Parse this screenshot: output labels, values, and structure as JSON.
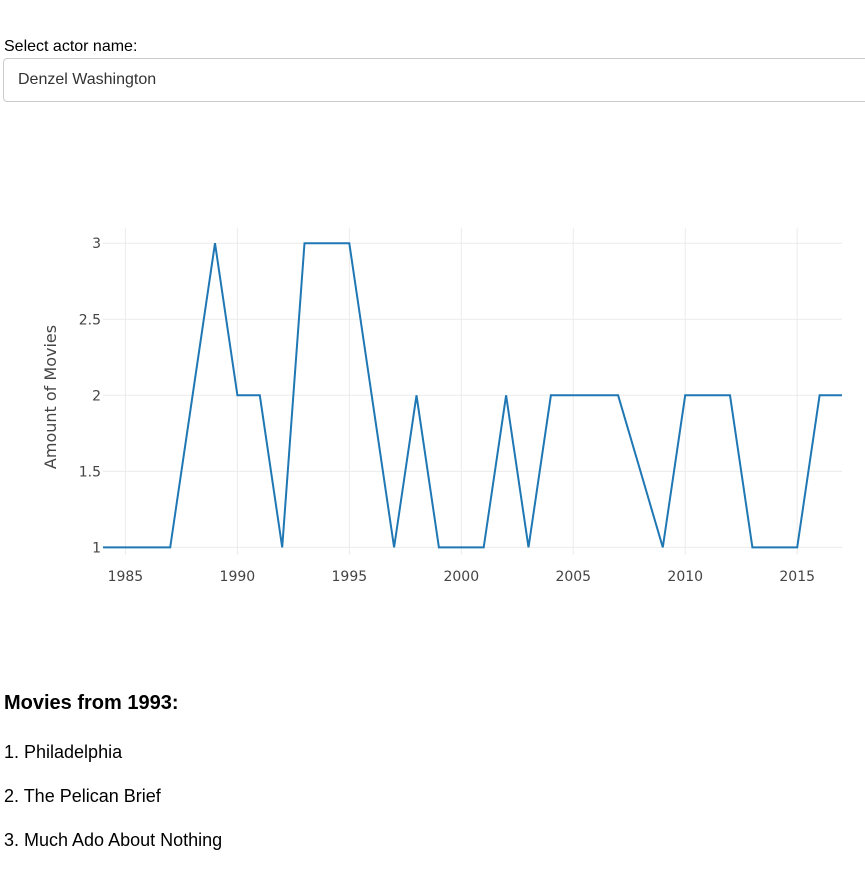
{
  "actor_select": {
    "label": "Select actor name:",
    "value": "Denzel Washington"
  },
  "chart_data": {
    "type": "line",
    "ylabel": "Amount of Movies",
    "xlabel": "",
    "xlim": [
      1984,
      2017
    ],
    "ylim": [
      0.95,
      3.1
    ],
    "x_ticks": [
      1985,
      1990,
      1995,
      2000,
      2005,
      2010,
      2015
    ],
    "y_ticks": [
      1,
      1.5,
      2,
      2.5,
      3
    ],
    "y_tick_labels": [
      "1",
      "1.5",
      "2",
      "2.5",
      "3"
    ],
    "grid": true,
    "line_color": "#1f77b4",
    "series": [
      {
        "x": [
          1984,
          1985,
          1986,
          1987,
          1988,
          1989,
          1990,
          1991,
          1992,
          1993,
          1994,
          1995,
          1996,
          1997,
          1998,
          1999,
          2000,
          2001,
          2002,
          2003,
          2004,
          2005,
          2006,
          2007,
          2008,
          2009,
          2010,
          2011,
          2012,
          2013,
          2014,
          2015,
          2016,
          2017
        ],
        "values": [
          1,
          1,
          1,
          1,
          2,
          3,
          2,
          2,
          1,
          3,
          3,
          3,
          2,
          1,
          2,
          1,
          1,
          1,
          2,
          1,
          2,
          2,
          2,
          2,
          1.5,
          1,
          2,
          2,
          2,
          1,
          1,
          1,
          2,
          2
        ]
      }
    ]
  },
  "movies_section": {
    "heading": "Movies from 1993:",
    "items": [
      "1. Philadelphia",
      "2. The Pelican Brief",
      "3. Much Ado About Nothing"
    ]
  }
}
